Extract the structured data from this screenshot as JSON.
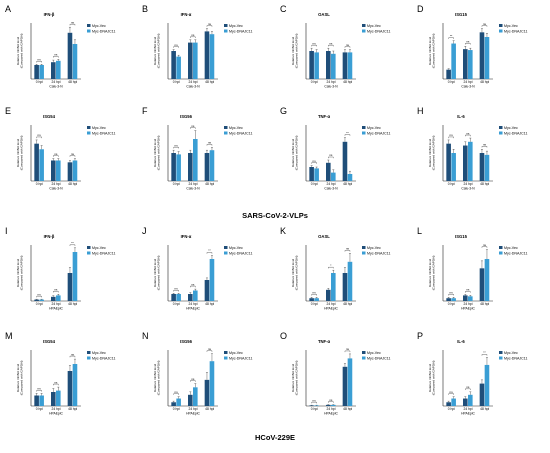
{
  "colors": {
    "vec": "#1f4e79",
    "dnajc": "#3a9ed4",
    "axis": "#222222",
    "text": "#111111"
  },
  "sections": [
    {
      "label": "SARS-CoV-2-VLPs"
    },
    {
      "label": "HCoV-229E"
    }
  ],
  "legend_labels": [
    "Myc-Vec",
    "Myc-DNAJC11"
  ],
  "y_axis_label_line1": "Relative mRNA level",
  "y_axis_label_line2": "(Compared with GAPDH)",
  "chart_data": [
    {
      "type": "bar",
      "letter": "A",
      "title": "IFN-β",
      "categories": [
        "0 hpi",
        "24 hpi",
        "48 hpi"
      ],
      "xlabel": "Calu-3-N",
      "ylim": [
        0,
        4
      ],
      "series": [
        {
          "name": "Myc-Vec",
          "values": [
            1.0,
            1.2,
            3.3
          ],
          "err": [
            0.05,
            0.15,
            0.4
          ]
        },
        {
          "name": "Myc-DNAJC11",
          "values": [
            1.0,
            1.3,
            2.5
          ],
          "err": [
            0.05,
            0.1,
            0.3
          ]
        }
      ],
      "sig": [
        "ns",
        "ns",
        "ns"
      ]
    },
    {
      "type": "bar",
      "letter": "B",
      "title": "IFN-α",
      "categories": [
        "0 hpi",
        "24 hpi",
        "48 hpi"
      ],
      "xlabel": "Calu-3-N",
      "ylim": [
        0,
        2
      ],
      "series": [
        {
          "name": "Myc-Vec",
          "values": [
            1.0,
            1.3,
            1.7
          ],
          "err": [
            0.05,
            0.1,
            0.1
          ]
        },
        {
          "name": "Myc-DNAJC11",
          "values": [
            0.8,
            1.3,
            1.6
          ],
          "err": [
            0.05,
            0.1,
            0.1
          ]
        }
      ],
      "sig": [
        "ns",
        "ns",
        "ns"
      ]
    },
    {
      "type": "bar",
      "letter": "C",
      "title": "OASL",
      "categories": [
        "0 hpi",
        "24 hpi",
        "48 hpi"
      ],
      "xlabel": "Calu-3-N",
      "ylim": [
        0,
        2
      ],
      "series": [
        {
          "name": "Myc-Vec",
          "values": [
            1.0,
            1.0,
            0.95
          ],
          "err": [
            0.1,
            0.1,
            0.1
          ]
        },
        {
          "name": "Myc-DNAJC11",
          "values": [
            0.95,
            0.9,
            0.95
          ],
          "err": [
            0.1,
            0.1,
            0.1
          ]
        }
      ],
      "sig": [
        "ns",
        "ns",
        "ns"
      ]
    },
    {
      "type": "bar",
      "letter": "D",
      "title": "ISG15",
      "categories": [
        "0 hpi",
        "24 hpi",
        "48 hpi"
      ],
      "xlabel": "Calu-3-N",
      "ylim": [
        0,
        6
      ],
      "series": [
        {
          "name": "Myc-Vec",
          "values": [
            1.0,
            3.2,
            5.0
          ],
          "err": [
            0.1,
            0.3,
            0.4
          ]
        },
        {
          "name": "Myc-DNAJC11",
          "values": [
            3.8,
            3.1,
            4.5
          ],
          "err": [
            0.3,
            0.2,
            0.4
          ]
        }
      ],
      "sig": [
        "**",
        "ns",
        "ns"
      ]
    },
    {
      "type": "bar",
      "letter": "E",
      "title": "ISG54",
      "categories": [
        "0 hpi",
        "24 hpi",
        "48 hpi"
      ],
      "xlabel": "Calu-3-N",
      "ylim": [
        0,
        1.5
      ],
      "series": [
        {
          "name": "Myc-Vec",
          "values": [
            1.0,
            0.55,
            0.5
          ],
          "err": [
            0.1,
            0.05,
            0.05
          ]
        },
        {
          "name": "Myc-DNAJC11",
          "values": [
            0.85,
            0.55,
            0.55
          ],
          "err": [
            0.1,
            0.05,
            0.05
          ]
        }
      ],
      "sig": [
        "ns",
        "ns",
        "ns"
      ]
    },
    {
      "type": "bar",
      "letter": "F",
      "title": "ISG56",
      "categories": [
        "0 hpi",
        "24 hpi",
        "48 hpi"
      ],
      "xlabel": "Calu-3-N",
      "ylim": [
        0,
        2
      ],
      "series": [
        {
          "name": "Myc-Vec",
          "values": [
            1.0,
            1.0,
            1.0
          ],
          "err": [
            0.1,
            0.1,
            0.1
          ]
        },
        {
          "name": "Myc-DNAJC11",
          "values": [
            0.95,
            1.5,
            1.1
          ],
          "err": [
            0.1,
            0.3,
            0.1
          ]
        }
      ],
      "sig": [
        "ns",
        "ns",
        "ns"
      ]
    },
    {
      "type": "bar",
      "letter": "G",
      "title": "TNF-α",
      "categories": [
        "0 hpi",
        "24 hpi",
        "48 hpi"
      ],
      "xlabel": "Calu-3-N",
      "ylim": [
        0,
        4
      ],
      "series": [
        {
          "name": "Myc-Vec",
          "values": [
            1.0,
            1.3,
            2.8
          ],
          "err": [
            0.1,
            0.2,
            0.3
          ]
        },
        {
          "name": "Myc-DNAJC11",
          "values": [
            0.9,
            0.6,
            0.5
          ],
          "err": [
            0.1,
            0.2,
            0.2
          ]
        }
      ],
      "sig": [
        "ns",
        "ns",
        "**"
      ]
    },
    {
      "type": "bar",
      "letter": "H",
      "title": "IL-6",
      "categories": [
        "0 hpi",
        "24 hpi",
        "48 hpi"
      ],
      "xlabel": "Calu-3-N",
      "ylim": [
        0,
        1.5
      ],
      "series": [
        {
          "name": "Myc-Vec",
          "values": [
            1.0,
            0.95,
            0.75
          ],
          "err": [
            0.1,
            0.1,
            0.1
          ]
        },
        {
          "name": "Myc-DNAJC11",
          "values": [
            0.75,
            1.05,
            0.7
          ],
          "err": [
            0.1,
            0.1,
            0.1
          ]
        }
      ],
      "sig": [
        "ns",
        "ns",
        "ns"
      ]
    },
    {
      "type": "bar",
      "letter": "I",
      "title": "IFN-β",
      "categories": [
        "0 hpi",
        "24 hpi",
        "48 hpi"
      ],
      "xlabel": "HPAEpiC",
      "ylim": [
        0,
        40
      ],
      "series": [
        {
          "name": "Myc-Vec",
          "values": [
            1,
            3,
            20
          ],
          "err": [
            0.3,
            0.8,
            4
          ]
        },
        {
          "name": "Myc-DNAJC11",
          "values": [
            1,
            4,
            35
          ],
          "err": [
            0.3,
            0.8,
            3
          ]
        }
      ],
      "sig": [
        "ns",
        "ns",
        "**"
      ]
    },
    {
      "type": "bar",
      "letter": "J",
      "title": "IFN-α",
      "categories": [
        "0 hpi",
        "24 hpi",
        "48 hpi"
      ],
      "xlabel": "HPAEpiC",
      "ylim": [
        0,
        8
      ],
      "series": [
        {
          "name": "Myc-Vec",
          "values": [
            1.0,
            1.0,
            3.0
          ],
          "err": [
            0.1,
            0.2,
            0.3
          ]
        },
        {
          "name": "Myc-DNAJC11",
          "values": [
            1.0,
            1.5,
            6.0
          ],
          "err": [
            0.1,
            0.2,
            0.5
          ]
        }
      ],
      "sig": [
        "ns",
        "ns",
        "**"
      ]
    },
    {
      "type": "bar",
      "letter": "K",
      "title": "OASL",
      "categories": [
        "0 hpi",
        "24 hpi",
        "48 hpi"
      ],
      "xlabel": "HPAEpiC",
      "ylim": [
        0,
        20
      ],
      "series": [
        {
          "name": "Myc-Vec",
          "values": [
            1,
            4,
            10
          ],
          "err": [
            0.3,
            0.5,
            2
          ]
        },
        {
          "name": "Myc-DNAJC11",
          "values": [
            1,
            10,
            14
          ],
          "err": [
            0.3,
            1,
            3
          ]
        }
      ],
      "sig": [
        "ns",
        "*",
        "ns"
      ]
    },
    {
      "type": "bar",
      "letter": "L",
      "title": "ISG15",
      "categories": [
        "0 hpi",
        "24 hpi",
        "48 hpi"
      ],
      "xlabel": "HPAEpiC",
      "ylim": [
        0,
        6
      ],
      "series": [
        {
          "name": "Myc-Vec",
          "values": [
            0.3,
            0.6,
            3.5
          ],
          "err": [
            0.1,
            0.1,
            0.8
          ]
        },
        {
          "name": "Myc-DNAJC11",
          "values": [
            0.3,
            0.5,
            4.5
          ],
          "err": [
            0.1,
            0.1,
            1
          ]
        }
      ],
      "sig": [
        "ns",
        "ns",
        "ns"
      ]
    },
    {
      "type": "bar",
      "letter": "M",
      "title": "ISG54",
      "categories": [
        "0 hpi",
        "24 hpi",
        "48 hpi"
      ],
      "xlabel": "HPAEpiC",
      "ylim": [
        0,
        8
      ],
      "series": [
        {
          "name": "Myc-Vec",
          "values": [
            1.5,
            2.0,
            5.0
          ],
          "err": [
            0.3,
            0.5,
            0.8
          ]
        },
        {
          "name": "Myc-DNAJC11",
          "values": [
            1.5,
            2.2,
            6.0
          ],
          "err": [
            0.3,
            0.5,
            0.7
          ]
        }
      ],
      "sig": [
        "ns",
        "ns",
        "ns"
      ]
    },
    {
      "type": "bar",
      "letter": "N",
      "title": "ISG56",
      "categories": [
        "0 hpi",
        "24 hpi",
        "48 hpi"
      ],
      "xlabel": "HPAEpiC",
      "ylim": [
        0,
        15
      ],
      "series": [
        {
          "name": "Myc-Vec",
          "values": [
            1,
            3,
            7
          ],
          "err": [
            0.3,
            0.8,
            2
          ]
        },
        {
          "name": "Myc-DNAJC11",
          "values": [
            2,
            5,
            12
          ],
          "err": [
            0.5,
            1,
            2
          ]
        }
      ],
      "sig": [
        "ns",
        "ns",
        "ns"
      ]
    },
    {
      "type": "bar",
      "letter": "O",
      "title": "TNF-α",
      "categories": [
        "0 hpi",
        "24 hpi",
        "48 hpi"
      ],
      "xlabel": "HPAEpiC",
      "ylim": [
        0,
        100
      ],
      "series": [
        {
          "name": "Myc-Vec",
          "values": [
            1,
            2,
            70
          ],
          "err": [
            0.5,
            0.5,
            6
          ]
        },
        {
          "name": "Myc-DNAJC11",
          "values": [
            1,
            2,
            85
          ],
          "err": [
            0.5,
            0.5,
            8
          ]
        }
      ],
      "sig": [
        "ns",
        "ns",
        "ns"
      ]
    },
    {
      "type": "bar",
      "letter": "P",
      "title": "IL-6",
      "categories": [
        "0 hpi",
        "24 hpi",
        "48 hpi"
      ],
      "xlabel": "HPAEpiC",
      "ylim": [
        0,
        15
      ],
      "series": [
        {
          "name": "Myc-Vec",
          "values": [
            1,
            2,
            6
          ],
          "err": [
            0.3,
            0.5,
            1
          ]
        },
        {
          "name": "Myc-DNAJC11",
          "values": [
            2,
            3,
            11
          ],
          "err": [
            0.5,
            0.8,
            2
          ]
        }
      ],
      "sig": [
        "ns",
        "ns",
        "**"
      ]
    }
  ]
}
